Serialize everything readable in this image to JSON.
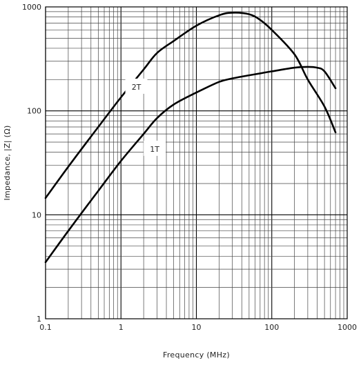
{
  "chart_data": {
    "type": "line",
    "title": "",
    "xlabel": "Frequency  (MHz)",
    "ylabel": "Impedance,  |Z|  (Ω)",
    "x_scale": "log",
    "y_scale": "log",
    "xlim": [
      0.1,
      1000
    ],
    "ylim": [
      1,
      1000
    ],
    "x_ticks": [
      0.1,
      1,
      10,
      100,
      1000
    ],
    "x_tick_labels": [
      "0.1",
      "1",
      "10",
      "100",
      "1000"
    ],
    "y_ticks": [
      1,
      10,
      100,
      1000
    ],
    "y_tick_labels": [
      "1",
      "10",
      "100",
      "1000"
    ],
    "grid": true,
    "series": [
      {
        "name": "2T",
        "x": [
          0.1,
          0.2,
          0.5,
          1,
          2,
          3,
          5,
          10,
          20,
          30,
          50,
          70,
          100,
          200,
          300,
          500,
          700
        ],
        "y": [
          14.5,
          29,
          70,
          135,
          250,
          360,
          470,
          660,
          830,
          880,
          850,
          750,
          600,
          350,
          200,
          110,
          62
        ]
      },
      {
        "name": "1T",
        "x": [
          0.1,
          0.2,
          0.5,
          1,
          2,
          3,
          5,
          10,
          20,
          30,
          50,
          100,
          200,
          300,
          400,
          500,
          700
        ],
        "y": [
          3.5,
          7,
          17,
          33,
          60,
          85,
          115,
          150,
          190,
          205,
          220,
          240,
          260,
          265,
          260,
          240,
          165
        ]
      }
    ],
    "line_color": "#000000"
  }
}
